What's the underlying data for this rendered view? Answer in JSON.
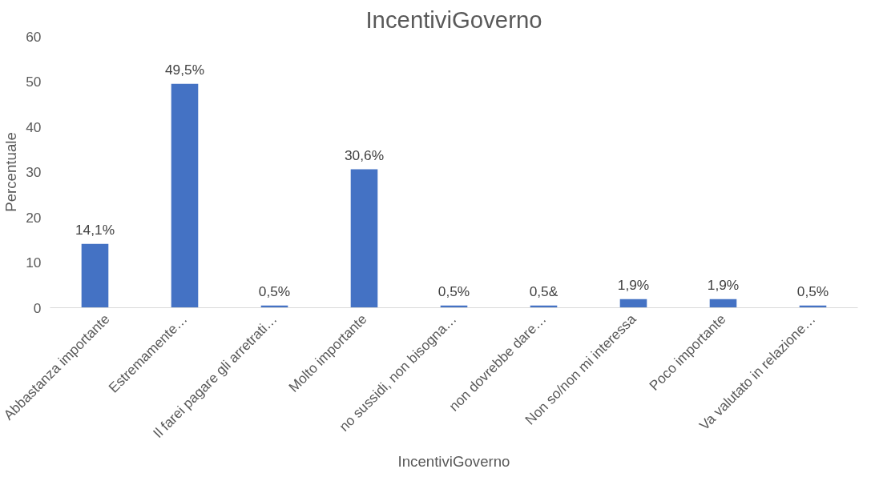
{
  "chart_data": {
    "type": "bar",
    "title": "IncentiviGoverno",
    "xlabel": "IncentiviGoverno",
    "ylabel": "Percentuale",
    "categories": [
      "Abbastanza importante",
      "Estremamente…",
      "Il farei pagare gli arretrati…",
      "Molto importante",
      "no sussidi, non bisogna…",
      "non dovrebbe dare…",
      "Non so/non mi interessa",
      "Poco importante",
      "Va valutato in relazione…"
    ],
    "values": [
      14.1,
      49.5,
      0.5,
      30.6,
      0.5,
      0.5,
      1.9,
      1.9,
      0.5
    ],
    "value_labels": [
      "14,1%",
      "49,5%",
      "0,5%",
      "30,6%",
      "0,5%",
      "0,5&",
      "1,9%",
      "1,9%",
      "0,5%"
    ],
    "color": "#4472c4",
    "ylim": [
      0,
      60
    ],
    "yticks": [
      0,
      10,
      20,
      30,
      40,
      50,
      60
    ],
    "grid": false
  }
}
